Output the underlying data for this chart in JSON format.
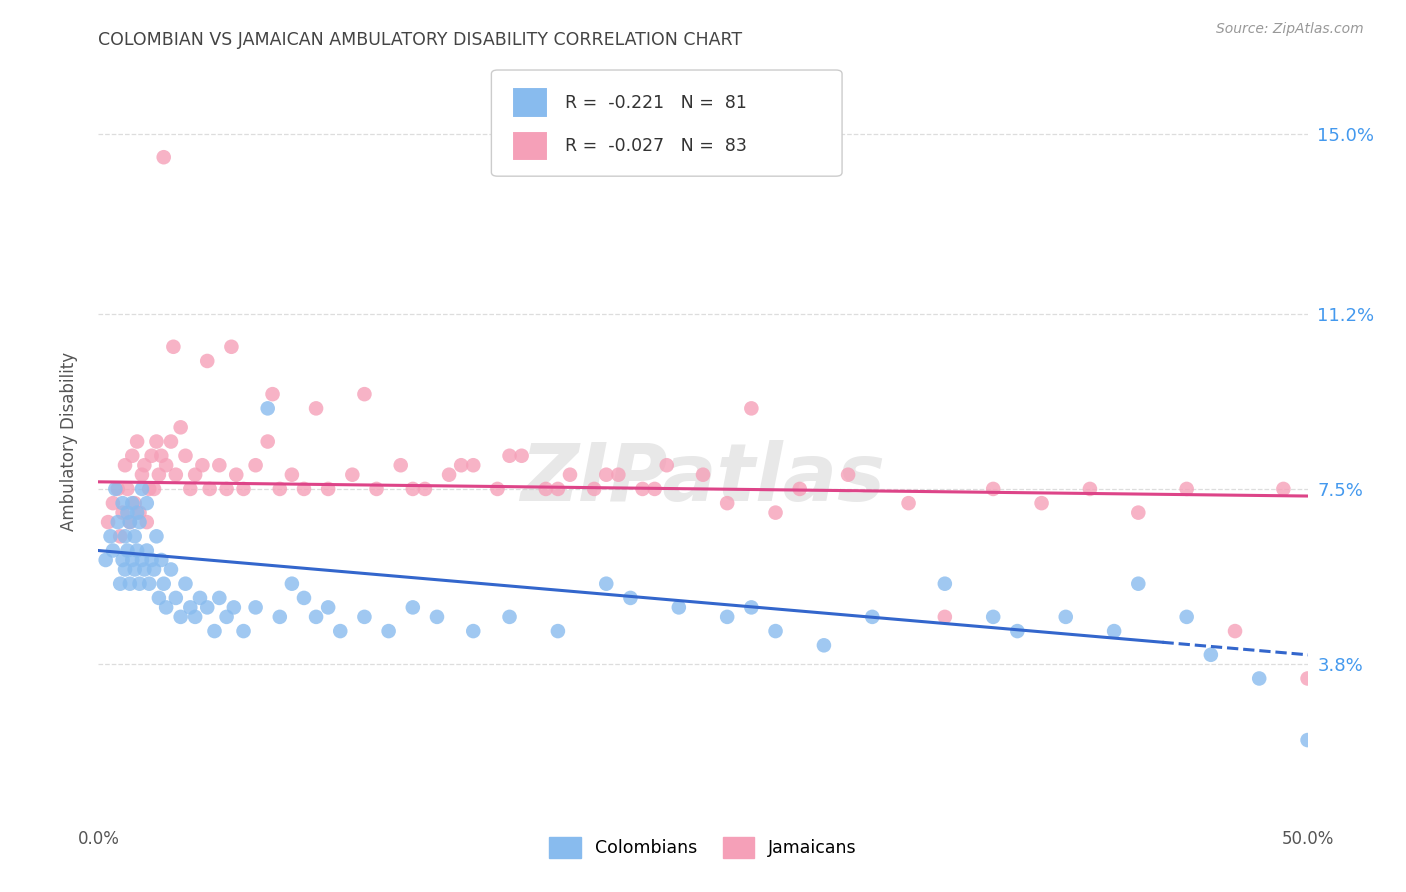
{
  "title": "COLOMBIAN VS JAMAICAN AMBULATORY DISABILITY CORRELATION CHART",
  "source": "Source: ZipAtlas.com",
  "ylabel": "Ambulatory Disability",
  "xmin": 0.0,
  "xmax": 50.0,
  "ymin": 0.5,
  "ymax": 16.5,
  "yticks": [
    3.8,
    7.5,
    11.2,
    15.0
  ],
  "ytick_labels": [
    "3.8%",
    "7.5%",
    "11.2%",
    "15.0%"
  ],
  "colombian_color": "#88bbee",
  "jamaican_color": "#f5a0b8",
  "colombian_line_color": "#3366cc",
  "jamaican_line_color": "#dd4488",
  "colombian_R": "-0.221",
  "colombian_N": "81",
  "jamaican_R": "-0.027",
  "jamaican_N": "83",
  "legend_label_1": "Colombians",
  "legend_label_2": "Jamaicans",
  "watermark": "ZIPatlas",
  "background_color": "#ffffff",
  "grid_color": "#dddddd",
  "title_color": "#444444",
  "axis_label_color": "#555555",
  "right_tick_color": "#4499ee",
  "colombians_x": [
    0.3,
    0.5,
    0.6,
    0.7,
    0.8,
    0.9,
    1.0,
    1.0,
    1.1,
    1.1,
    1.2,
    1.2,
    1.3,
    1.3,
    1.4,
    1.4,
    1.5,
    1.5,
    1.6,
    1.6,
    1.7,
    1.7,
    1.8,
    1.8,
    1.9,
    2.0,
    2.0,
    2.1,
    2.2,
    2.3,
    2.4,
    2.5,
    2.6,
    2.7,
    2.8,
    3.0,
    3.2,
    3.4,
    3.6,
    3.8,
    4.0,
    4.2,
    4.5,
    4.8,
    5.0,
    5.3,
    5.6,
    6.0,
    6.5,
    7.0,
    7.5,
    8.0,
    8.5,
    9.0,
    9.5,
    10.0,
    11.0,
    12.0,
    13.0,
    14.0,
    15.5,
    17.0,
    19.0,
    21.0,
    22.0,
    24.0,
    26.0,
    27.0,
    28.0,
    30.0,
    32.0,
    35.0,
    37.0,
    38.0,
    40.0,
    42.0,
    43.0,
    45.0,
    46.0,
    48.0,
    50.0
  ],
  "colombians_y": [
    6.0,
    6.5,
    6.2,
    7.5,
    6.8,
    5.5,
    6.0,
    7.2,
    5.8,
    6.5,
    6.2,
    7.0,
    5.5,
    6.8,
    6.0,
    7.2,
    5.8,
    6.5,
    6.2,
    7.0,
    5.5,
    6.8,
    6.0,
    7.5,
    5.8,
    6.2,
    7.2,
    5.5,
    6.0,
    5.8,
    6.5,
    5.2,
    6.0,
    5.5,
    5.0,
    5.8,
    5.2,
    4.8,
    5.5,
    5.0,
    4.8,
    5.2,
    5.0,
    4.5,
    5.2,
    4.8,
    5.0,
    4.5,
    5.0,
    9.2,
    4.8,
    5.5,
    5.2,
    4.8,
    5.0,
    4.5,
    4.8,
    4.5,
    5.0,
    4.8,
    4.5,
    4.8,
    4.5,
    5.5,
    5.2,
    5.0,
    4.8,
    5.0,
    4.5,
    4.2,
    4.8,
    5.5,
    4.8,
    4.5,
    4.8,
    4.5,
    5.5,
    4.8,
    4.0,
    3.5,
    2.2
  ],
  "jamaicans_x": [
    0.4,
    0.6,
    0.8,
    0.9,
    1.0,
    1.1,
    1.2,
    1.3,
    1.4,
    1.5,
    1.6,
    1.7,
    1.8,
    1.9,
    2.0,
    2.1,
    2.2,
    2.3,
    2.4,
    2.5,
    2.6,
    2.8,
    3.0,
    3.2,
    3.4,
    3.6,
    3.8,
    4.0,
    4.3,
    4.6,
    5.0,
    5.3,
    5.7,
    6.0,
    6.5,
    7.0,
    7.5,
    8.0,
    8.5,
    9.5,
    10.5,
    11.5,
    12.5,
    13.5,
    14.5,
    15.5,
    16.5,
    17.5,
    18.5,
    19.5,
    20.5,
    21.5,
    22.5,
    23.5,
    25.0,
    27.0,
    29.0,
    31.0,
    33.5,
    35.0,
    37.0,
    39.0,
    41.0,
    43.0,
    45.0,
    47.0,
    49.0,
    2.7,
    3.1,
    4.5,
    5.5,
    7.2,
    9.0,
    11.0,
    13.0,
    15.0,
    17.0,
    19.0,
    21.0,
    23.0,
    26.0,
    28.0,
    50.0
  ],
  "jamaicans_y": [
    6.8,
    7.2,
    7.5,
    6.5,
    7.0,
    8.0,
    7.5,
    6.8,
    8.2,
    7.2,
    8.5,
    7.0,
    7.8,
    8.0,
    6.8,
    7.5,
    8.2,
    7.5,
    8.5,
    7.8,
    8.2,
    8.0,
    8.5,
    7.8,
    8.8,
    8.2,
    7.5,
    7.8,
    8.0,
    7.5,
    8.0,
    7.5,
    7.8,
    7.5,
    8.0,
    8.5,
    7.5,
    7.8,
    7.5,
    7.5,
    7.8,
    7.5,
    8.0,
    7.5,
    7.8,
    8.0,
    7.5,
    8.2,
    7.5,
    7.8,
    7.5,
    7.8,
    7.5,
    8.0,
    7.8,
    9.2,
    7.5,
    7.8,
    7.2,
    4.8,
    7.5,
    7.2,
    7.5,
    7.0,
    7.5,
    4.5,
    7.5,
    14.5,
    10.5,
    10.2,
    10.5,
    9.5,
    9.2,
    9.5,
    7.5,
    8.0,
    8.2,
    7.5,
    7.8,
    7.5,
    7.2,
    7.0,
    3.5
  ]
}
